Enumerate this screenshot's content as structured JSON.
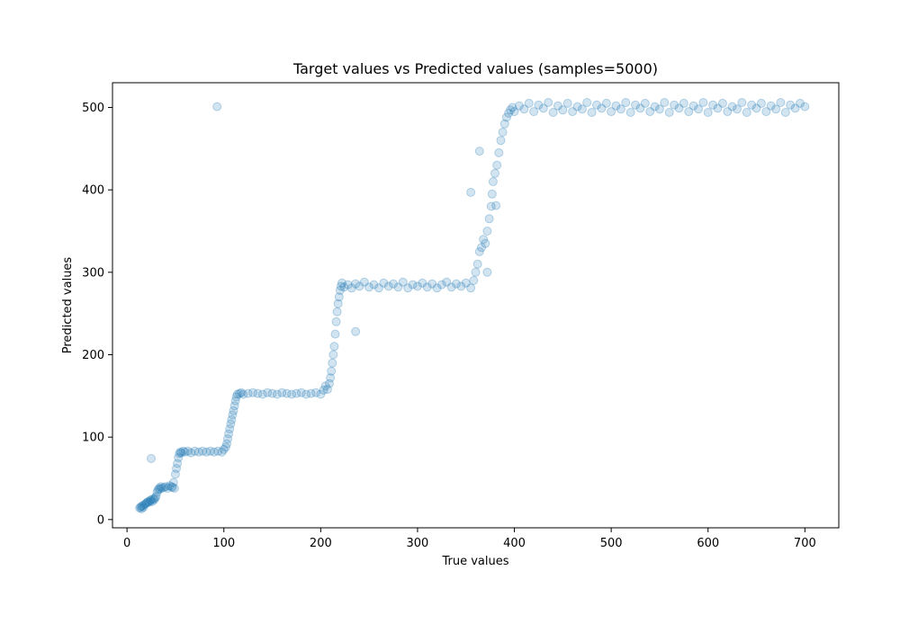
{
  "chart_data": {
    "type": "scatter",
    "title": "Target values vs Predicted values (samples=5000)",
    "xlabel": "True values",
    "ylabel": "Predicted values",
    "xlim": [
      -15,
      735
    ],
    "ylim": [
      -10,
      530
    ],
    "xticks": [
      0,
      100,
      200,
      300,
      400,
      500,
      600,
      700
    ],
    "yticks": [
      0,
      100,
      200,
      300,
      400,
      500
    ],
    "grid": false,
    "legend": "none",
    "marker_color": "#1f77b4",
    "marker_alpha": 0.2,
    "series": [
      {
        "points": [
          [
            13,
            14
          ],
          [
            14,
            15
          ],
          [
            15,
            13
          ],
          [
            15,
            16
          ],
          [
            16,
            17
          ],
          [
            17,
            15
          ],
          [
            18,
            18
          ],
          [
            19,
            19
          ],
          [
            20,
            20
          ],
          [
            21,
            21
          ],
          [
            22,
            22
          ],
          [
            23,
            21
          ],
          [
            24,
            23
          ],
          [
            25,
            24
          ],
          [
            26,
            22
          ],
          [
            27,
            25
          ],
          [
            28,
            24
          ],
          [
            29,
            26
          ],
          [
            30,
            28
          ],
          [
            31,
            33
          ],
          [
            32,
            36
          ],
          [
            33,
            38
          ],
          [
            34,
            37
          ],
          [
            35,
            40
          ],
          [
            36,
            38
          ],
          [
            38,
            39
          ],
          [
            40,
            40
          ],
          [
            42,
            38
          ],
          [
            44,
            41
          ],
          [
            46,
            40
          ],
          [
            47,
            39
          ],
          [
            48,
            45
          ],
          [
            49,
            38
          ],
          [
            50,
            55
          ],
          [
            51,
            62
          ],
          [
            52,
            68
          ],
          [
            53,
            75
          ],
          [
            54,
            80
          ],
          [
            55,
            82
          ],
          [
            56,
            81
          ],
          [
            58,
            83
          ],
          [
            60,
            82
          ],
          [
            63,
            83
          ],
          [
            66,
            81
          ],
          [
            70,
            83
          ],
          [
            74,
            82
          ],
          [
            78,
            83
          ],
          [
            82,
            82
          ],
          [
            86,
            83
          ],
          [
            90,
            82
          ],
          [
            94,
            83
          ],
          [
            98,
            82
          ],
          [
            100,
            85
          ],
          [
            102,
            88
          ],
          [
            103,
            92
          ],
          [
            104,
            98
          ],
          [
            105,
            104
          ],
          [
            106,
            110
          ],
          [
            107,
            116
          ],
          [
            108,
            121
          ],
          [
            109,
            127
          ],
          [
            110,
            132
          ],
          [
            111,
            138
          ],
          [
            112,
            144
          ],
          [
            113,
            149
          ],
          [
            114,
            152
          ],
          [
            116,
            153
          ],
          [
            118,
            154
          ],
          [
            120,
            152
          ],
          [
            125,
            153
          ],
          [
            130,
            154
          ],
          [
            135,
            153
          ],
          [
            140,
            152
          ],
          [
            145,
            154
          ],
          [
            150,
            153
          ],
          [
            155,
            152
          ],
          [
            160,
            154
          ],
          [
            165,
            153
          ],
          [
            170,
            152
          ],
          [
            175,
            153
          ],
          [
            180,
            154
          ],
          [
            185,
            152
          ],
          [
            190,
            153
          ],
          [
            195,
            154
          ],
          [
            200,
            152
          ],
          [
            203,
            157
          ],
          [
            205,
            162
          ],
          [
            207,
            158
          ],
          [
            209,
            165
          ],
          [
            210,
            172
          ],
          [
            211,
            180
          ],
          [
            212,
            190
          ],
          [
            213,
            200
          ],
          [
            214,
            210
          ],
          [
            215,
            225
          ],
          [
            216,
            240
          ],
          [
            217,
            252
          ],
          [
            218,
            262
          ],
          [
            219,
            270
          ],
          [
            220,
            278
          ],
          [
            221,
            283
          ],
          [
            222,
            287
          ],
          [
            224,
            282
          ],
          [
            228,
            285
          ],
          [
            232,
            281
          ],
          [
            236,
            286
          ],
          [
            240,
            283
          ],
          [
            245,
            288
          ],
          [
            250,
            282
          ],
          [
            255,
            285
          ],
          [
            260,
            281
          ],
          [
            265,
            287
          ],
          [
            270,
            283
          ],
          [
            275,
            286
          ],
          [
            280,
            282
          ],
          [
            285,
            288
          ],
          [
            290,
            281
          ],
          [
            295,
            285
          ],
          [
            300,
            283
          ],
          [
            305,
            287
          ],
          [
            310,
            282
          ],
          [
            315,
            286
          ],
          [
            320,
            281
          ],
          [
            325,
            285
          ],
          [
            330,
            288
          ],
          [
            335,
            282
          ],
          [
            340,
            286
          ],
          [
            345,
            283
          ],
          [
            350,
            287
          ],
          [
            355,
            281
          ],
          [
            358,
            290
          ],
          [
            360,
            300
          ],
          [
            362,
            310
          ],
          [
            364,
            325
          ],
          [
            366,
            330
          ],
          [
            368,
            340
          ],
          [
            370,
            335
          ],
          [
            372,
            350
          ],
          [
            374,
            365
          ],
          [
            376,
            380
          ],
          [
            377,
            395
          ],
          [
            378,
            410
          ],
          [
            380,
            420
          ],
          [
            382,
            430
          ],
          [
            384,
            445
          ],
          [
            386,
            460
          ],
          [
            388,
            470
          ],
          [
            390,
            480
          ],
          [
            392,
            488
          ],
          [
            394,
            493
          ],
          [
            396,
            497
          ],
          [
            398,
            500
          ],
          [
            400,
            495
          ],
          [
            405,
            502
          ],
          [
            410,
            498
          ],
          [
            415,
            505
          ],
          [
            420,
            495
          ],
          [
            425,
            503
          ],
          [
            430,
            499
          ],
          [
            435,
            506
          ],
          [
            440,
            494
          ],
          [
            445,
            502
          ],
          [
            450,
            497
          ],
          [
            455,
            505
          ],
          [
            460,
            495
          ],
          [
            465,
            501
          ],
          [
            470,
            498
          ],
          [
            475,
            506
          ],
          [
            480,
            494
          ],
          [
            485,
            503
          ],
          [
            490,
            499
          ],
          [
            495,
            505
          ],
          [
            500,
            495
          ],
          [
            505,
            502
          ],
          [
            510,
            498
          ],
          [
            515,
            506
          ],
          [
            520,
            494
          ],
          [
            525,
            503
          ],
          [
            530,
            499
          ],
          [
            535,
            505
          ],
          [
            540,
            495
          ],
          [
            545,
            501
          ],
          [
            550,
            498
          ],
          [
            555,
            506
          ],
          [
            560,
            494
          ],
          [
            565,
            503
          ],
          [
            570,
            499
          ],
          [
            575,
            505
          ],
          [
            580,
            495
          ],
          [
            585,
            502
          ],
          [
            590,
            498
          ],
          [
            595,
            506
          ],
          [
            600,
            494
          ],
          [
            605,
            503
          ],
          [
            610,
            499
          ],
          [
            615,
            505
          ],
          [
            620,
            495
          ],
          [
            625,
            501
          ],
          [
            630,
            498
          ],
          [
            635,
            506
          ],
          [
            640,
            494
          ],
          [
            645,
            503
          ],
          [
            650,
            499
          ],
          [
            655,
            505
          ],
          [
            660,
            495
          ],
          [
            665,
            502
          ],
          [
            670,
            498
          ],
          [
            675,
            506
          ],
          [
            680,
            494
          ],
          [
            685,
            503
          ],
          [
            690,
            499
          ],
          [
            695,
            505
          ],
          [
            700,
            501
          ],
          [
            93,
            501
          ],
          [
            25,
            74
          ],
          [
            236,
            228
          ],
          [
            355,
            397
          ],
          [
            372,
            300
          ],
          [
            364,
            447
          ],
          [
            381,
            381
          ]
        ]
      }
    ]
  }
}
